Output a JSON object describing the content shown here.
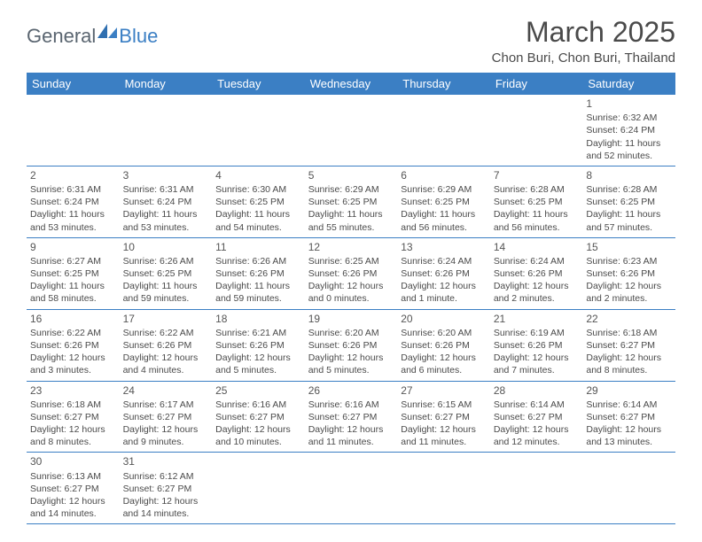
{
  "logo": {
    "general": "General",
    "blue": "Blue"
  },
  "title": "March 2025",
  "location": "Chon Buri, Chon Buri, Thailand",
  "colors": {
    "header_bg": "#3b7fc4",
    "header_fg": "#ffffff",
    "border": "#3b7fc4",
    "text": "#4a4a4a",
    "logo_gray": "#5a6570",
    "logo_blue": "#3b7fc4"
  },
  "day_headers": [
    "Sunday",
    "Monday",
    "Tuesday",
    "Wednesday",
    "Thursday",
    "Friday",
    "Saturday"
  ],
  "weeks": [
    [
      null,
      null,
      null,
      null,
      null,
      null,
      {
        "n": "1",
        "sr": "Sunrise: 6:32 AM",
        "ss": "Sunset: 6:24 PM",
        "dl1": "Daylight: 11 hours",
        "dl2": "and 52 minutes."
      }
    ],
    [
      {
        "n": "2",
        "sr": "Sunrise: 6:31 AM",
        "ss": "Sunset: 6:24 PM",
        "dl1": "Daylight: 11 hours",
        "dl2": "and 53 minutes."
      },
      {
        "n": "3",
        "sr": "Sunrise: 6:31 AM",
        "ss": "Sunset: 6:24 PM",
        "dl1": "Daylight: 11 hours",
        "dl2": "and 53 minutes."
      },
      {
        "n": "4",
        "sr": "Sunrise: 6:30 AM",
        "ss": "Sunset: 6:25 PM",
        "dl1": "Daylight: 11 hours",
        "dl2": "and 54 minutes."
      },
      {
        "n": "5",
        "sr": "Sunrise: 6:29 AM",
        "ss": "Sunset: 6:25 PM",
        "dl1": "Daylight: 11 hours",
        "dl2": "and 55 minutes."
      },
      {
        "n": "6",
        "sr": "Sunrise: 6:29 AM",
        "ss": "Sunset: 6:25 PM",
        "dl1": "Daylight: 11 hours",
        "dl2": "and 56 minutes."
      },
      {
        "n": "7",
        "sr": "Sunrise: 6:28 AM",
        "ss": "Sunset: 6:25 PM",
        "dl1": "Daylight: 11 hours",
        "dl2": "and 56 minutes."
      },
      {
        "n": "8",
        "sr": "Sunrise: 6:28 AM",
        "ss": "Sunset: 6:25 PM",
        "dl1": "Daylight: 11 hours",
        "dl2": "and 57 minutes."
      }
    ],
    [
      {
        "n": "9",
        "sr": "Sunrise: 6:27 AM",
        "ss": "Sunset: 6:25 PM",
        "dl1": "Daylight: 11 hours",
        "dl2": "and 58 minutes."
      },
      {
        "n": "10",
        "sr": "Sunrise: 6:26 AM",
        "ss": "Sunset: 6:25 PM",
        "dl1": "Daylight: 11 hours",
        "dl2": "and 59 minutes."
      },
      {
        "n": "11",
        "sr": "Sunrise: 6:26 AM",
        "ss": "Sunset: 6:26 PM",
        "dl1": "Daylight: 11 hours",
        "dl2": "and 59 minutes."
      },
      {
        "n": "12",
        "sr": "Sunrise: 6:25 AM",
        "ss": "Sunset: 6:26 PM",
        "dl1": "Daylight: 12 hours",
        "dl2": "and 0 minutes."
      },
      {
        "n": "13",
        "sr": "Sunrise: 6:24 AM",
        "ss": "Sunset: 6:26 PM",
        "dl1": "Daylight: 12 hours",
        "dl2": "and 1 minute."
      },
      {
        "n": "14",
        "sr": "Sunrise: 6:24 AM",
        "ss": "Sunset: 6:26 PM",
        "dl1": "Daylight: 12 hours",
        "dl2": "and 2 minutes."
      },
      {
        "n": "15",
        "sr": "Sunrise: 6:23 AM",
        "ss": "Sunset: 6:26 PM",
        "dl1": "Daylight: 12 hours",
        "dl2": "and 2 minutes."
      }
    ],
    [
      {
        "n": "16",
        "sr": "Sunrise: 6:22 AM",
        "ss": "Sunset: 6:26 PM",
        "dl1": "Daylight: 12 hours",
        "dl2": "and 3 minutes."
      },
      {
        "n": "17",
        "sr": "Sunrise: 6:22 AM",
        "ss": "Sunset: 6:26 PM",
        "dl1": "Daylight: 12 hours",
        "dl2": "and 4 minutes."
      },
      {
        "n": "18",
        "sr": "Sunrise: 6:21 AM",
        "ss": "Sunset: 6:26 PM",
        "dl1": "Daylight: 12 hours",
        "dl2": "and 5 minutes."
      },
      {
        "n": "19",
        "sr": "Sunrise: 6:20 AM",
        "ss": "Sunset: 6:26 PM",
        "dl1": "Daylight: 12 hours",
        "dl2": "and 5 minutes."
      },
      {
        "n": "20",
        "sr": "Sunrise: 6:20 AM",
        "ss": "Sunset: 6:26 PM",
        "dl1": "Daylight: 12 hours",
        "dl2": "and 6 minutes."
      },
      {
        "n": "21",
        "sr": "Sunrise: 6:19 AM",
        "ss": "Sunset: 6:26 PM",
        "dl1": "Daylight: 12 hours",
        "dl2": "and 7 minutes."
      },
      {
        "n": "22",
        "sr": "Sunrise: 6:18 AM",
        "ss": "Sunset: 6:27 PM",
        "dl1": "Daylight: 12 hours",
        "dl2": "and 8 minutes."
      }
    ],
    [
      {
        "n": "23",
        "sr": "Sunrise: 6:18 AM",
        "ss": "Sunset: 6:27 PM",
        "dl1": "Daylight: 12 hours",
        "dl2": "and 8 minutes."
      },
      {
        "n": "24",
        "sr": "Sunrise: 6:17 AM",
        "ss": "Sunset: 6:27 PM",
        "dl1": "Daylight: 12 hours",
        "dl2": "and 9 minutes."
      },
      {
        "n": "25",
        "sr": "Sunrise: 6:16 AM",
        "ss": "Sunset: 6:27 PM",
        "dl1": "Daylight: 12 hours",
        "dl2": "and 10 minutes."
      },
      {
        "n": "26",
        "sr": "Sunrise: 6:16 AM",
        "ss": "Sunset: 6:27 PM",
        "dl1": "Daylight: 12 hours",
        "dl2": "and 11 minutes."
      },
      {
        "n": "27",
        "sr": "Sunrise: 6:15 AM",
        "ss": "Sunset: 6:27 PM",
        "dl1": "Daylight: 12 hours",
        "dl2": "and 11 minutes."
      },
      {
        "n": "28",
        "sr": "Sunrise: 6:14 AM",
        "ss": "Sunset: 6:27 PM",
        "dl1": "Daylight: 12 hours",
        "dl2": "and 12 minutes."
      },
      {
        "n": "29",
        "sr": "Sunrise: 6:14 AM",
        "ss": "Sunset: 6:27 PM",
        "dl1": "Daylight: 12 hours",
        "dl2": "and 13 minutes."
      }
    ],
    [
      {
        "n": "30",
        "sr": "Sunrise: 6:13 AM",
        "ss": "Sunset: 6:27 PM",
        "dl1": "Daylight: 12 hours",
        "dl2": "and 14 minutes."
      },
      {
        "n": "31",
        "sr": "Sunrise: 6:12 AM",
        "ss": "Sunset: 6:27 PM",
        "dl1": "Daylight: 12 hours",
        "dl2": "and 14 minutes."
      },
      null,
      null,
      null,
      null,
      null
    ]
  ]
}
